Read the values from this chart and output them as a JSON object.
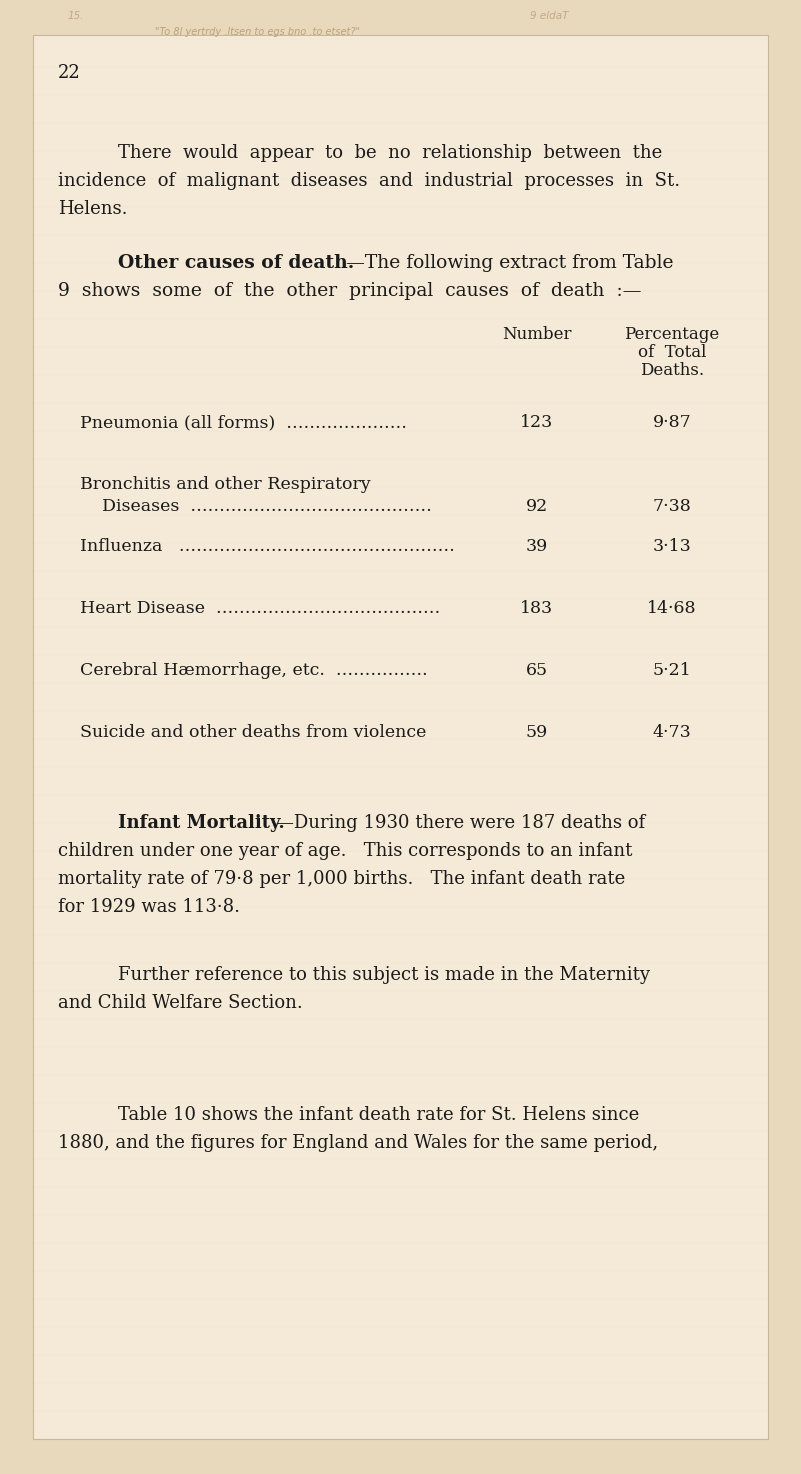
{
  "page_bg_outer": "#e8d8bc",
  "page_bg_inner": "#f5ead8",
  "border_color": "#c8b898",
  "page_number": "22",
  "intro_text_lines": [
    "There  would  appear  to  be  no  relationship  between  the",
    "incidence  of  malignant  diseases  and  industrial  processes  in  St.",
    "Helens."
  ],
  "section_heading_bold": "Other causes of death.",
  "section_heading_rest": "—The following extract from Table",
  "section_heading_line2": "9  shows  some  of  the  other  principal  causes  of  death  :—",
  "table_col2_header": "Number",
  "table_col3_header": "Percentage",
  "table_col3_header2": "of  Total",
  "table_col3_header3": "Deaths.",
  "table_rows": [
    {
      "label_line1": "Pneumonia (all forms)  …………………",
      "label_line2": null,
      "number": "123",
      "percentage": "9·87"
    },
    {
      "label_line1": "Bronchitis and other Respiratory",
      "label_line2": "    Diseases  ……………………………………",
      "number": "92",
      "percentage": "7·38"
    },
    {
      "label_line1": "Influenza   …………………………………………",
      "label_line2": null,
      "number": "39",
      "percentage": "3·13"
    },
    {
      "label_line1": "Heart Disease  …………………………………",
      "label_line2": null,
      "number": "183",
      "percentage": "14·68"
    },
    {
      "label_line1": "Cerebral Hæmorrhage, etc.  …………….",
      "label_line2": null,
      "number": "65",
      "percentage": "5·21"
    },
    {
      "label_line1": "Suicide and other deaths from violence",
      "label_line2": null,
      "number": "59",
      "percentage": "4·73"
    }
  ],
  "infant_para_bold": "Infant Mortality.",
  "infant_para_rest": "—During 1930 there were 187 deaths of",
  "infant_para_line2": "children under one year of age.   This corresponds to an infant",
  "infant_para_line3": "mortality rate of 79·8 per 1,000 births.   The infant death rate",
  "infant_para_line4": "for 1929 was 113·8.",
  "further_para_line1": "Further reference to this subject is made in the Maternity",
  "further_para_line2": "and Child Welfare Section.",
  "table10_para_line1": "Table 10 shows the infant death rate for St. Helens since",
  "table10_para_line2": "1880, and the figures for England and Wales for the same period,"
}
